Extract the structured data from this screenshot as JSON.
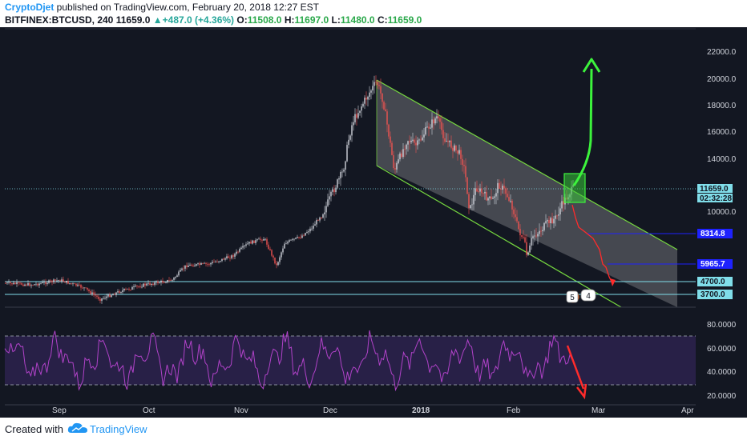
{
  "header": {
    "author": "CryptoDjet",
    "published": " published on TradingView.com, February 20, 2018 12:27 EST",
    "symbol": "BITFINEX:BTCUSD, 240",
    "last": "11659.0",
    "change": "+487.0 (+4.36%)",
    "o_label": "O:",
    "o_value": "11508.0",
    "h_label": "H:",
    "h_value": "11697.0",
    "l_label": "L:",
    "l_value": "11480.0",
    "c_label": "C:",
    "c_value": "11659.0"
  },
  "price_axis": {
    "ticks": [
      "22000.0",
      "20000.0",
      "18000.0",
      "16000.0",
      "14000.0",
      "10000.0"
    ],
    "tick_values": [
      22000,
      20000,
      18000,
      16000,
      14000,
      10000
    ],
    "current_price": "11659.0",
    "countdown": "02:32:28",
    "levels": [
      {
        "label": "8314.8",
        "value": 8314.8,
        "color": "#1e22ff"
      },
      {
        "label": "5965.7",
        "value": 5965.7,
        "color": "#1e22ff"
      },
      {
        "label": "4700.0",
        "value": 4700,
        "color": "#80deea"
      },
      {
        "label": "3700.0",
        "value": 3700,
        "color": "#80deea"
      }
    ]
  },
  "rsi_axis": {
    "ticks": [
      "80.0000",
      "60.0000",
      "40.0000",
      "20.0000"
    ],
    "tick_values": [
      80,
      60,
      40,
      20
    ],
    "upper_band": 70,
    "lower_band": 30
  },
  "time_axis": {
    "labels": [
      "Sep",
      "Oct",
      "Nov",
      "Dec",
      "2018",
      "Feb",
      "Mar",
      "Apr"
    ]
  },
  "markers": {
    "events_5": "5",
    "events_4": "4"
  },
  "colors": {
    "background": "#131722",
    "channel": "#76d83f",
    "up_arrow": "#3cf33c",
    "down_arrow": "#ff2b2b",
    "rsi": "#b042c8",
    "support": "#80deea",
    "target": "#1e22ff",
    "highlight": "#38c738"
  },
  "footer": {
    "created_with": "Created with",
    "brand": "TradingView"
  }
}
